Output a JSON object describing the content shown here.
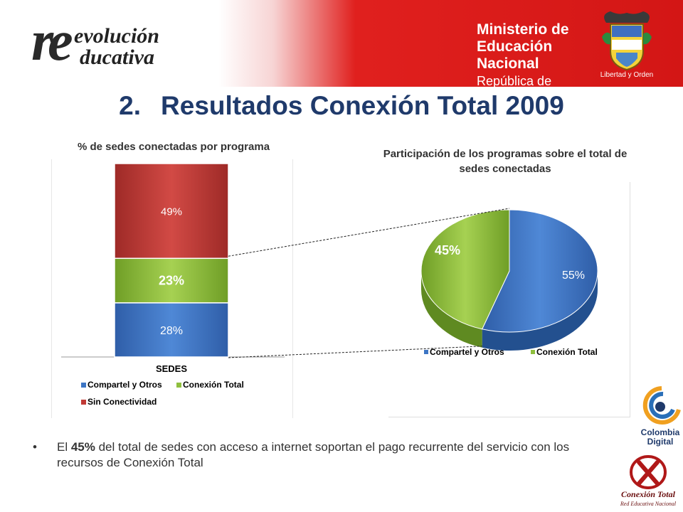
{
  "header": {
    "logo_left": {
      "mark": "re",
      "line1": "evolución",
      "line2": "ducativa"
    },
    "ministry": {
      "line1": "Ministerio de",
      "line2": "Educación Nacional",
      "line3": "República de Colombia"
    },
    "seal": {
      "icon": "colombia-coat-of-arms-icon",
      "motto": "Libertad y Orden"
    }
  },
  "slide": {
    "number": "2.",
    "title": "Resultados Conexión Total 2009"
  },
  "chart_data": [
    {
      "type": "bar",
      "stacked": true,
      "title": "% de sedes conectadas por programa",
      "xlabel": "SEDES",
      "ylabel": "",
      "categories": [
        "SEDES"
      ],
      "ylim": [
        0,
        100
      ],
      "series": [
        {
          "name": "Compartel y Otros",
          "values": [
            28
          ],
          "label": "28%",
          "color": "#3d75c4"
        },
        {
          "name": "Conexión Total",
          "values": [
            23
          ],
          "label": "23%",
          "color": "#8fbf3f"
        },
        {
          "name": "Sin Conectividad",
          "values": [
            49
          ],
          "label": "49%",
          "color": "#c03a36"
        }
      ],
      "legend": "bottom",
      "grid": false
    },
    {
      "type": "pie",
      "title": "Participación de los programas sobre el total de sedes conectadas",
      "slices": [
        {
          "name": "Compartel y Otros",
          "value": 55,
          "label": "55%",
          "color": "#3d75c4"
        },
        {
          "name": "Conexión Total",
          "value": 45,
          "label": "45%",
          "color": "#8fbf3f"
        }
      ],
      "legend": "bottom"
    }
  ],
  "bullet": {
    "before": "El ",
    "bold": "45%",
    "after": " del total de sedes con acceso a internet soportan el pago recurrente del servicio con los recursos de Conexión Total"
  },
  "footer_logos": {
    "colombia_digital": {
      "line1": "Colombia",
      "line2": "Digital"
    },
    "conexion_total": {
      "name": "Conexión Total",
      "sub": "Red Educativa Nacional"
    }
  }
}
